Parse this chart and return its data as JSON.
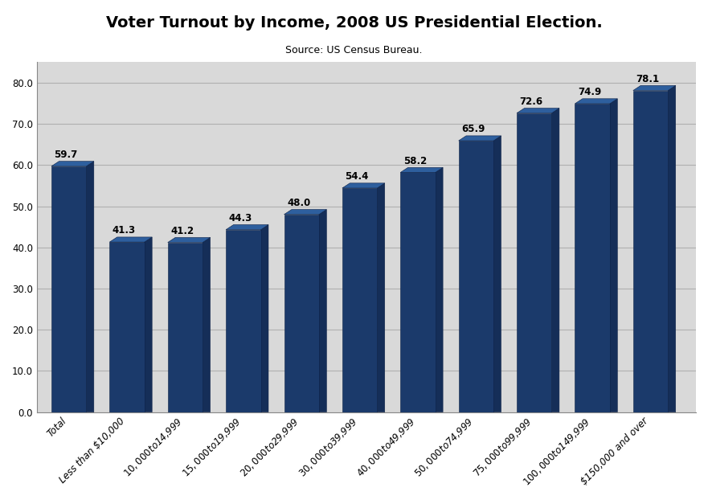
{
  "title": "Voter Turnout by Income, 2008 US Presidential Election.",
  "subtitle": "Source: US Census Bureau.",
  "categories": [
    "Total",
    "Less than $10,000",
    "$10,000 to $14,999",
    "$15,000 to $19,999",
    "$20,000 to $29,999",
    "$30,000 to $39,999",
    "$40,000 to $49,999",
    "$50,000 to $74,999",
    "$75,000 to $99,999",
    "$100,000 to $149,999",
    "$150,000 and over"
  ],
  "values": [
    59.7,
    41.3,
    41.2,
    44.3,
    48.0,
    54.4,
    58.2,
    65.9,
    72.6,
    74.9,
    78.1
  ],
  "bar_color_front": "#1b3a6b",
  "bar_color_side": "#152e58",
  "bar_color_top": "#2e5f9e",
  "background_color": "#ffffff",
  "plot_bg_color": "#ffffff",
  "chart_area_bg": "#d9d9d9",
  "ylim": [
    0,
    85
  ],
  "yticks": [
    0.0,
    10.0,
    20.0,
    30.0,
    40.0,
    50.0,
    60.0,
    70.0,
    80.0
  ],
  "title_fontsize": 14,
  "subtitle_fontsize": 9,
  "value_label_fontsize": 8.5,
  "tick_label_fontsize": 8.5,
  "grid_color": "#b0b0b0",
  "grid_linewidth": 0.8,
  "tick_color": "#1b3a6b"
}
